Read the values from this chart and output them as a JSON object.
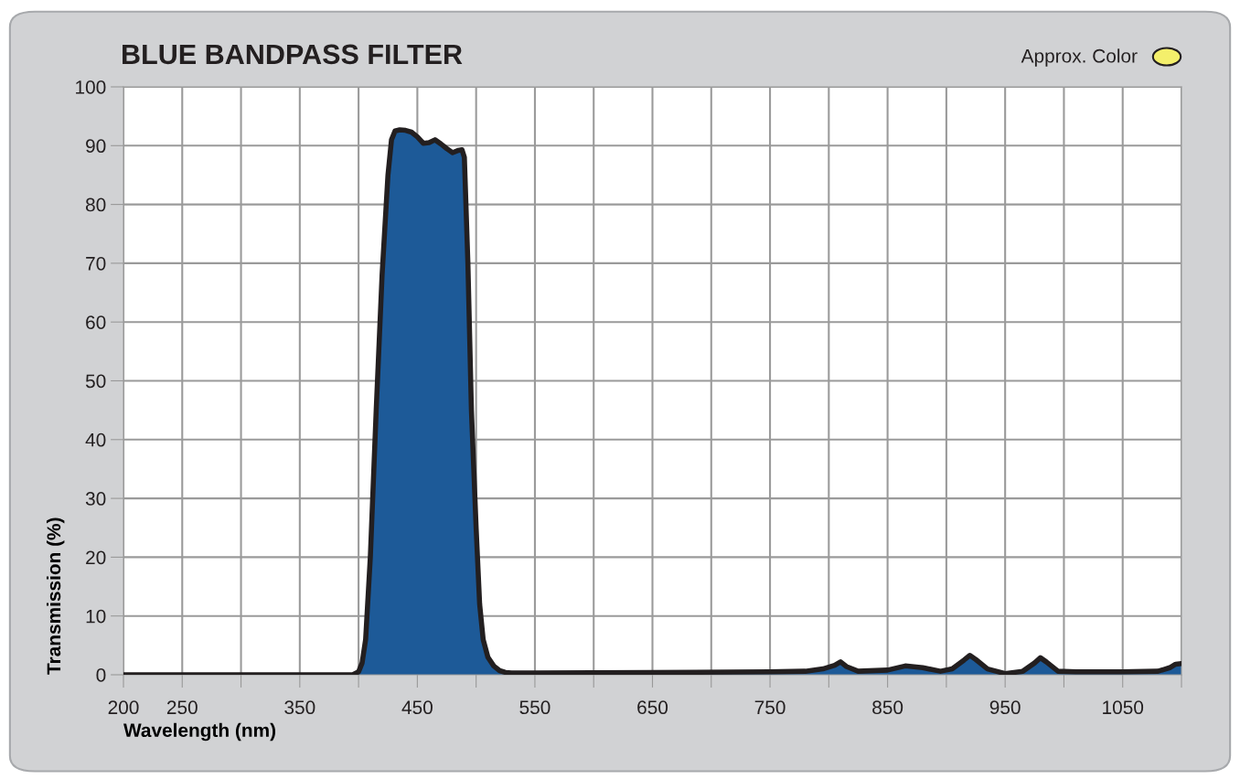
{
  "chart_data": {
    "type": "area",
    "title": "BLUE BANDPASS FILTER",
    "xlabel": "Wavelength (nm)",
    "ylabel": "Transmission (%)",
    "annotations": [
      "Approx. Color"
    ],
    "x": [
      200,
      300,
      395,
      400,
      403,
      406,
      410,
      415,
      420,
      425,
      428,
      431,
      435,
      440,
      445,
      450,
      455,
      460,
      465,
      470,
      475,
      480,
      485,
      488,
      490,
      493,
      496,
      500,
      503,
      506,
      510,
      515,
      520,
      525,
      530,
      550,
      650,
      750,
      780,
      795,
      805,
      810,
      815,
      825,
      850,
      865,
      880,
      895,
      905,
      915,
      920,
      925,
      935,
      950,
      965,
      975,
      980,
      985,
      995,
      1010,
      1050,
      1080,
      1090,
      1095,
      1100
    ],
    "series": [
      {
        "color": "#1d5a98",
        "values": [
          0,
          0,
          0,
          0.5,
          2,
          6,
          20,
          45,
          68,
          85,
          91,
          92.5,
          92.7,
          92.6,
          92.3,
          91.5,
          90.4,
          90.5,
          91,
          90.3,
          89.5,
          88.8,
          89.2,
          89.3,
          88,
          70,
          45,
          25,
          12,
          6,
          3,
          1.5,
          0.7,
          0.4,
          0.3,
          0.3,
          0.4,
          0.5,
          0.6,
          1,
          1.6,
          2.2,
          1.4,
          0.6,
          0.8,
          1.5,
          1.2,
          0.6,
          1,
          2.5,
          3.3,
          2.6,
          1,
          0.2,
          0.6,
          2,
          2.9,
          2.2,
          0.6,
          0.5,
          0.5,
          0.6,
          1.2,
          1.8,
          1.9
        ]
      }
    ],
    "xlim": [
      200,
      1100
    ],
    "ylim": [
      0,
      100
    ],
    "xticks": [
      200,
      250,
      {
        "value": 300,
        "label": null
      },
      350,
      {
        "value": 400,
        "label": null
      },
      450,
      {
        "value": 500,
        "label": null
      },
      550,
      {
        "value": 600,
        "label": null
      },
      650,
      {
        "value": 700,
        "label": null
      },
      750,
      {
        "value": 800,
        "label": null
      },
      850,
      {
        "value": 900,
        "label": null
      },
      950,
      {
        "value": 1000,
        "label": null
      },
      1050,
      {
        "value": 1100,
        "label": null
      }
    ],
    "yticks": [
      0,
      10,
      20,
      30,
      40,
      50,
      60,
      70,
      80,
      90,
      100
    ],
    "grid": true,
    "legend": false
  }
}
